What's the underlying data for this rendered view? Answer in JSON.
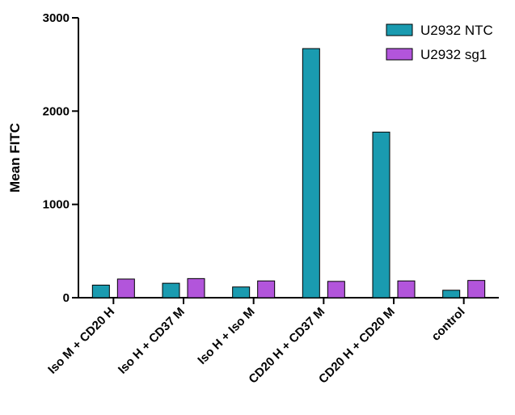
{
  "chart_data": {
    "type": "bar",
    "title": "",
    "xlabel": "",
    "ylabel": "Mean FITC",
    "ylim": [
      0,
      3000
    ],
    "yticks": [
      0,
      1000,
      2000,
      3000
    ],
    "grid": false,
    "legend_position": "top-right",
    "categories": [
      "Iso M + CD20 H",
      "Iso H + CD37 M",
      "Iso H + Iso M",
      "CD20 H + CD37 M",
      "CD20 H + CD20 M",
      "control"
    ],
    "series": [
      {
        "name": "U2932 NTC",
        "color": "#1a9bb0",
        "values": [
          135,
          155,
          115,
          2670,
          1775,
          80
        ]
      },
      {
        "name": "U2932 sg1",
        "color": "#b255db",
        "values": [
          200,
          205,
          180,
          175,
          180,
          185
        ]
      }
    ]
  }
}
